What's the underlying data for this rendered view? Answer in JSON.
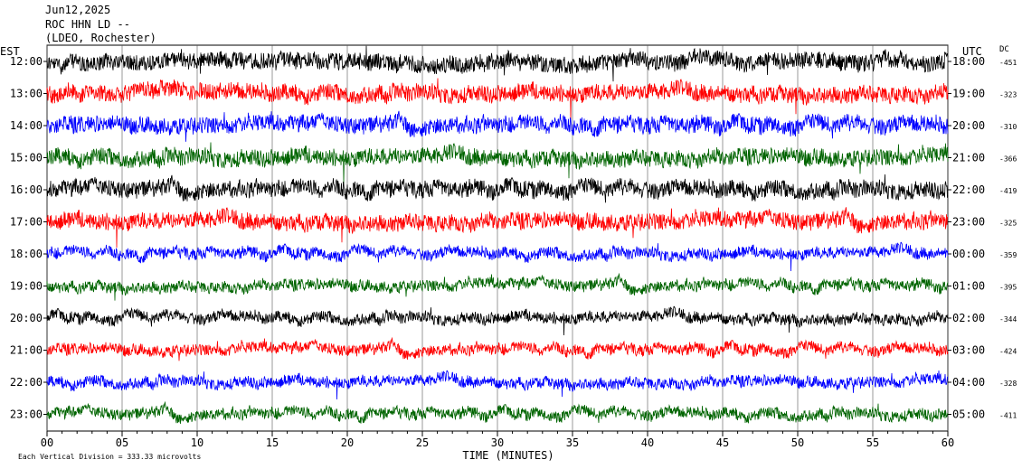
{
  "header": {
    "date": "Jun12,2025",
    "station": "ROC HHN LD --",
    "network": "(LDEO, Rochester)"
  },
  "chart_data": {
    "type": "line",
    "left_zone_label": "EST",
    "right_zone_label": "UTC",
    "dc_label": "DC",
    "xlabel": "TIME (MINUTES)",
    "xlim": [
      0,
      60
    ],
    "x_ticks": [
      "00",
      "05",
      "10",
      "15",
      "20",
      "25",
      "30",
      "35",
      "40",
      "45",
      "50",
      "55",
      "60"
    ],
    "scale_note": "Each Vertical Division =  333.33 microvolts",
    "trace_colors": [
      "#000000",
      "#ff0000",
      "#0000ff",
      "#006400"
    ],
    "rows": [
      {
        "est": "12:00",
        "utc": "18:00",
        "dc": "-451"
      },
      {
        "est": "13:00",
        "utc": "19:00",
        "dc": "-323"
      },
      {
        "est": "14:00",
        "utc": "20:00",
        "dc": "-310"
      },
      {
        "est": "15:00",
        "utc": "21:00",
        "dc": "-366"
      },
      {
        "est": "16:00",
        "utc": "22:00",
        "dc": "-419"
      },
      {
        "est": "17:00",
        "utc": "23:00",
        "dc": "-325"
      },
      {
        "est": "18:00",
        "utc": "00:00",
        "dc": "-359"
      },
      {
        "est": "19:00",
        "utc": "01:00",
        "dc": "-395"
      },
      {
        "est": "20:00",
        "utc": "02:00",
        "dc": "-344"
      },
      {
        "est": "21:00",
        "utc": "03:00",
        "dc": "-424"
      },
      {
        "est": "22:00",
        "utc": "04:00",
        "dc": "-328"
      },
      {
        "est": "23:00",
        "utc": "05:00",
        "dc": "-411"
      }
    ]
  }
}
